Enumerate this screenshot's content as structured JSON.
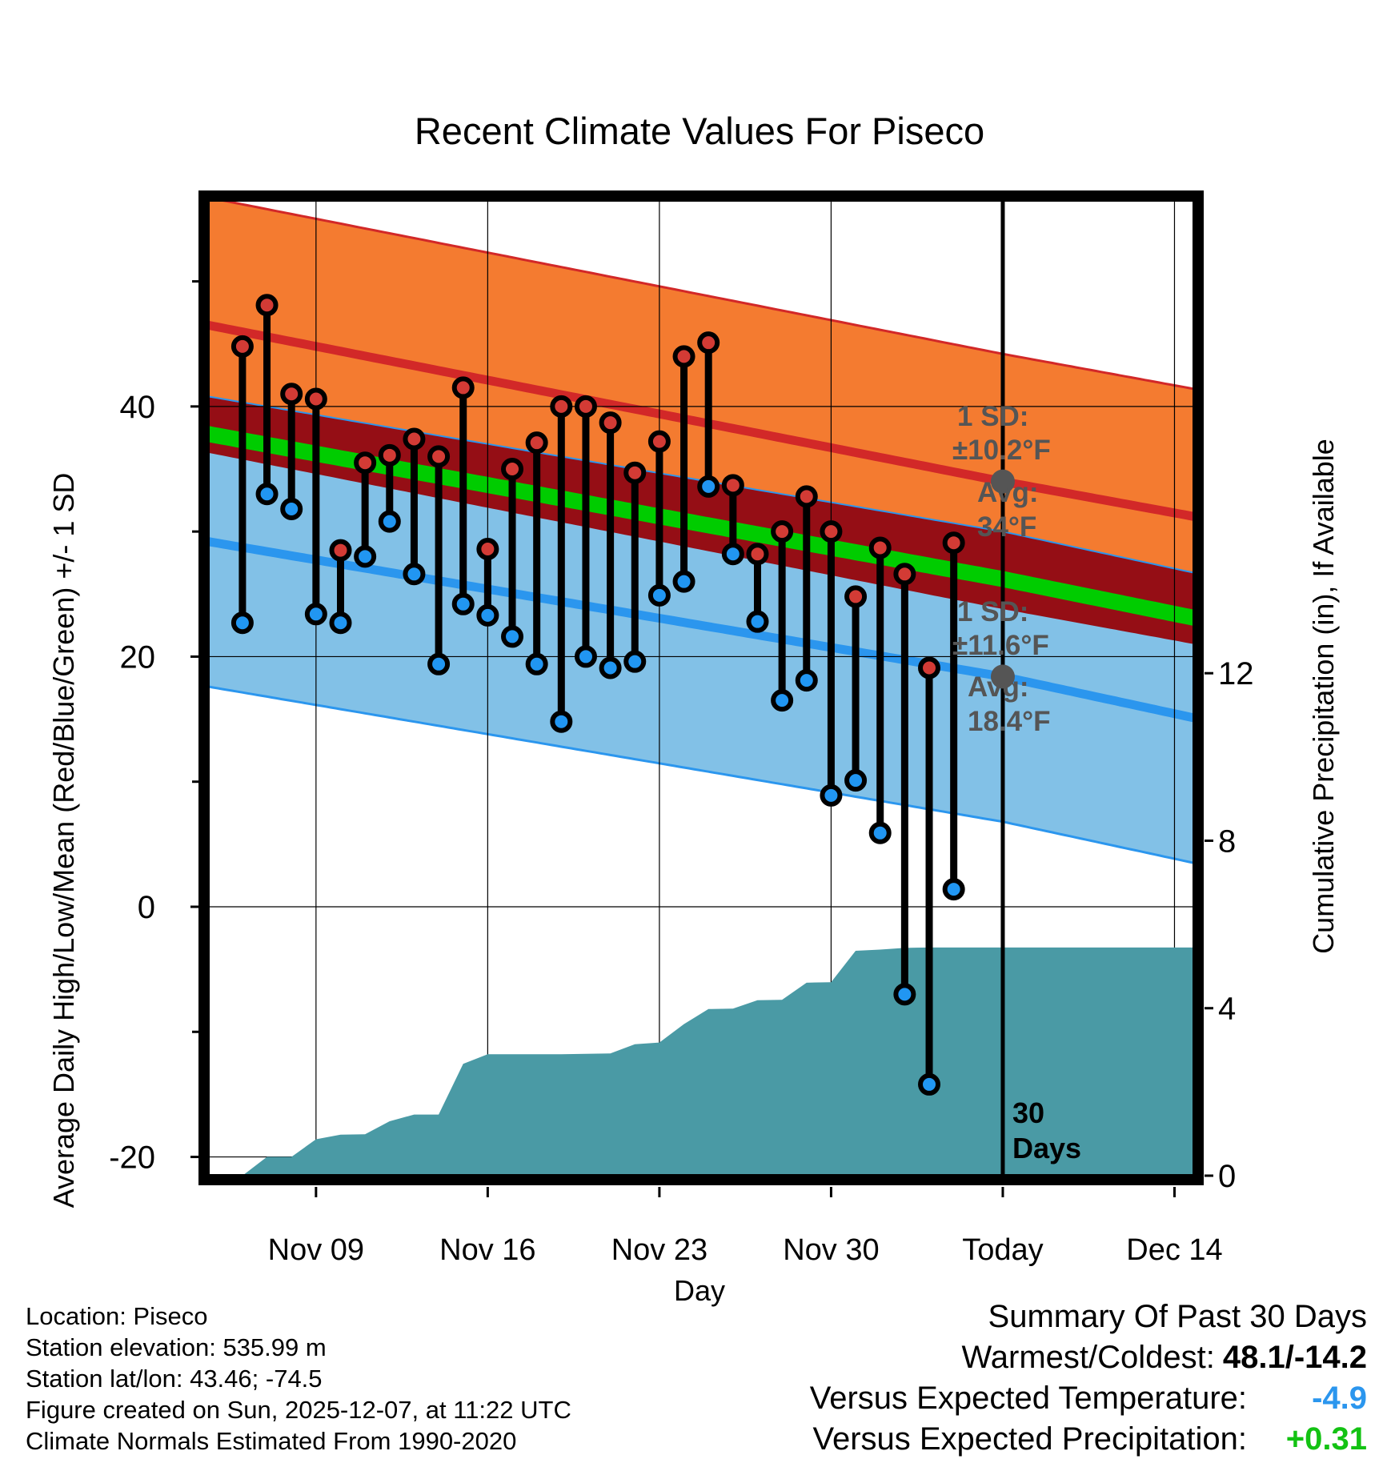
{
  "title": "Recent Climate Values For Piseco",
  "chart_data": {
    "type": "line",
    "title": "Recent Climate Values For Piseco",
    "xlabel": "Day",
    "ylabel": "Average Daily High/Low/Mean (Red/Blue/Green) +/- 1 SD",
    "y2label": "Cumulative Precipitation (in), If Available",
    "ylim": [
      -21.5,
      56.5
    ],
    "y2lim": [
      0,
      23.3
    ],
    "x_range_days": [
      -30.4,
      9.8
    ],
    "x_ticks": [
      {
        "day": -26,
        "label": "Nov 09"
      },
      {
        "day": -19,
        "label": "Nov 16"
      },
      {
        "day": -12,
        "label": "Nov 23"
      },
      {
        "day": -5,
        "label": "Nov 30"
      },
      {
        "day": 2,
        "label": "Today"
      },
      {
        "day": 9,
        "label": "Dec 14"
      }
    ],
    "y_ticks": [
      -20,
      0,
      20,
      40
    ],
    "y_minor_ticks": [
      -10,
      10,
      30,
      50
    ],
    "y2_ticks": [
      0,
      4,
      8,
      12
    ],
    "today_day": 2,
    "today_label": [
      "30",
      "Days"
    ],
    "daily_high": [
      44.8,
      48.1,
      41.0,
      40.6,
      28.5,
      35.5,
      36.1,
      37.4,
      36.0,
      41.5,
      28.6,
      35.0,
      37.1,
      40.0,
      40.0,
      38.7,
      34.7,
      37.2,
      44.0,
      45.1,
      33.7,
      28.2,
      30.0,
      32.8,
      30.0,
      24.8,
      28.7,
      26.6,
      19.1,
      29.1
    ],
    "daily_low": [
      22.7,
      33.0,
      31.8,
      23.4,
      22.7,
      28.0,
      30.8,
      26.6,
      19.4,
      24.2,
      23.3,
      21.6,
      19.4,
      14.8,
      20.0,
      19.1,
      19.6,
      24.9,
      26.0,
      33.6,
      28.2,
      22.8,
      16.5,
      18.1,
      8.9,
      10.1,
      5.9,
      -7.0,
      -14.2,
      1.4
    ],
    "normal_high_avg": {
      "start": 46.5,
      "today": 34.0,
      "end": 31.2
    },
    "normal_high_sd": 10.2,
    "normal_low_avg": {
      "start": 29.2,
      "today": 18.4,
      "end": 15.1
    },
    "normal_low_sd": 11.6,
    "normal_mean_avg": {
      "start": 37.8,
      "today": 26.2,
      "end": 23.1
    },
    "cumulative_precip": [
      0.0,
      0.45,
      0.45,
      0.87,
      0.98,
      0.99,
      1.3,
      1.46,
      1.46,
      2.67,
      2.9,
      2.9,
      2.9,
      2.9,
      2.91,
      2.92,
      3.14,
      3.18,
      3.62,
      3.98,
      3.99,
      4.19,
      4.2,
      4.61,
      4.62,
      5.37,
      5.4,
      5.44,
      5.45,
      5.45
    ],
    "colors": {
      "high_band": "#f47b30",
      "high_line": "#d22828",
      "low_band": "#82c1e7",
      "low_line": "#2b96ee",
      "mean_line": "#00cc00",
      "overlap": "#950e15",
      "precip": "#4a9aa5",
      "high_dot": "#d33b35",
      "low_dot": "#2196f2",
      "annot": "#555555"
    }
  },
  "annotations": {
    "high_sd_line1": "1 SD:",
    "high_sd_line2": "±10.2°F",
    "high_avg_line1": "Avg:",
    "high_avg_line2": "34°F",
    "low_sd_line1": "1 SD:",
    "low_sd_line2": "±11.6°F",
    "low_avg_line1": "Avg:",
    "low_avg_line2": "18.4°F"
  },
  "footer": {
    "location": "Location: Piseco",
    "elevation": "Station elevation: 535.99 m",
    "latlon": "Station lat/lon: 43.46; -74.5",
    "created": "Figure created on Sun, 2025-12-07, at 11:22 UTC",
    "normals": "Climate Normals Estimated From 1990-2020"
  },
  "summary": {
    "heading": "Summary Of Past 30 Days",
    "warm_cold_label": "Warmest/Coldest:",
    "warm_cold_value": "48.1/-14.2",
    "temp_label": "Versus Expected Temperature:",
    "temp_value": "-4.9",
    "precip_label": "Versus Expected Precipitation:",
    "precip_value": "+0.31"
  }
}
